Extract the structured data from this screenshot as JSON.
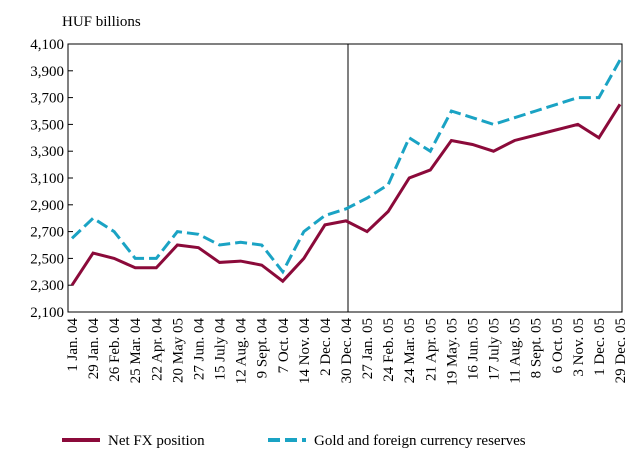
{
  "chart_data": {
    "type": "line",
    "y_label": "HUF billions",
    "categories": [
      "1 Jan. 04",
      "29 Jan. 04",
      "26 Feb. 04",
      "25 Mar. 04",
      "22 Apr. 04",
      "20 May 05",
      "27 Jun. 04",
      "15 July 04",
      "12 Aug. 04",
      "9 Sept. 04",
      "7 Oct. 04",
      "14 Nov. 04",
      "2 Dec. 04",
      "30 Dec. 04",
      "27 Jan. 05",
      "24 Feb. 05",
      "24 Mar. 05",
      "21 Apr. 05",
      "19 May. 05",
      "16 Jun. 05",
      "17 July 05",
      "11 Aug. 05",
      "8 Sept. 05",
      "6 Oct. 05",
      "3 Nov. 05",
      "1 Dec. 05",
      "29 Dec. 05"
    ],
    "series": [
      {
        "name": "Net FX position",
        "color": "#8b0a3a",
        "dash": false,
        "values": [
          2300,
          2540,
          2500,
          2430,
          2430,
          2600,
          2580,
          2470,
          2480,
          2450,
          2330,
          2500,
          2750,
          2780,
          2700,
          2850,
          3100,
          3160,
          3380,
          3350,
          3300,
          3380,
          3420,
          3460,
          3500,
          3400,
          3650
        ]
      },
      {
        "name": "Gold and foreign currency reserves",
        "color": "#1aa3c4",
        "dash": true,
        "values": [
          2650,
          2800,
          2700,
          2500,
          2500,
          2700,
          2680,
          2600,
          2620,
          2600,
          2400,
          2700,
          2820,
          2870,
          2950,
          3050,
          3400,
          3300,
          3600,
          3550,
          3500,
          3550,
          3600,
          3650,
          3700,
          3700,
          3980
        ]
      }
    ],
    "ylim": [
      2100,
      4100
    ],
    "yticks": [
      {
        "value": 2100,
        "label": "2,100"
      },
      {
        "value": 2300,
        "label": "2,300"
      },
      {
        "value": 2500,
        "label": "2,500"
      },
      {
        "value": 2700,
        "label": "2,700"
      },
      {
        "value": 2900,
        "label": "2,900"
      },
      {
        "value": 3100,
        "label": "3,100"
      },
      {
        "value": 3300,
        "label": "3,300"
      },
      {
        "value": 3500,
        "label": "3,500"
      },
      {
        "value": 3700,
        "label": "3,700"
      },
      {
        "value": 3900,
        "label": "3,900"
      },
      {
        "value": 4100,
        "label": "4,100"
      }
    ]
  }
}
